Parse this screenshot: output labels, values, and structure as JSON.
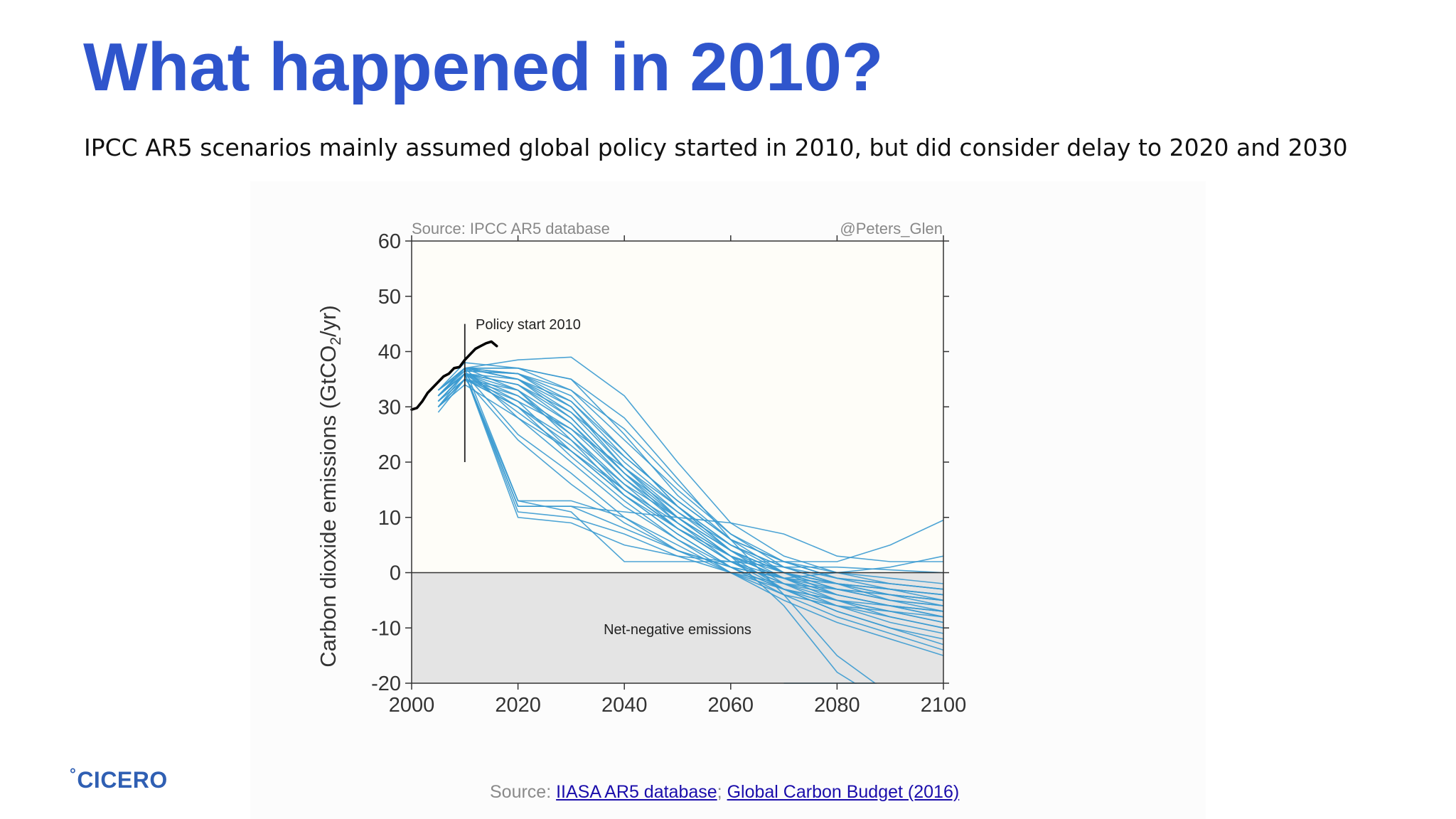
{
  "slide": {
    "title": "What happened in 2010?",
    "subtitle": "IPCC AR5 scenarios mainly assumed global policy started in 2010, but did consider delay to 2020 and 2030"
  },
  "footer": {
    "logo_text": "CICERO",
    "logo_mark": "°",
    "source_prefix": "Source: ",
    "link1": "IIASA AR5 database",
    "separator": ";",
    "link2": "Global Carbon Budget (2016)"
  },
  "colors": {
    "title": "#2F55CC",
    "scenario_lines": "#3A9AD0",
    "historical_line": "#000000",
    "negative_region": "#E4E4E4",
    "plot_background": "#FEFDF8"
  },
  "chart_data": {
    "type": "line",
    "source_note": "Source: IPCC AR5 database",
    "credit": "@Peters_Glen",
    "ylabel_parts": [
      "Carbon dioxide emissions (GtCO",
      "2",
      "/yr)"
    ],
    "xlabel": "",
    "xlim": [
      2000,
      2100
    ],
    "ylim": [
      -20,
      60
    ],
    "xticks": [
      2000,
      2020,
      2040,
      2060,
      2080,
      2100
    ],
    "yticks": [
      -20,
      -10,
      0,
      10,
      20,
      30,
      40,
      50,
      60
    ],
    "grid": false,
    "legend": "none",
    "annotations": {
      "policy_start": {
        "text": "Policy start 2010",
        "x": 2010,
        "y_from": 20,
        "y_to": 45
      },
      "negative_region": {
        "text": "Net-negative emissions",
        "y_from": -20,
        "y_to": 0
      }
    },
    "historical": {
      "x": [
        2000,
        2001,
        2002,
        2003,
        2004,
        2005,
        2006,
        2007,
        2008,
        2009,
        2010,
        2011,
        2012,
        2013,
        2014,
        2015,
        2016
      ],
      "y": [
        29.5,
        29.8,
        31,
        32.5,
        33.5,
        34.5,
        35.5,
        36,
        37,
        37.2,
        38.5,
        39.5,
        40.5,
        41,
        41.5,
        41.8,
        41
      ]
    },
    "scenarios": {
      "x": [
        2005,
        2010,
        2020,
        2030,
        2040,
        2050,
        2060,
        2070,
        2080,
        2090,
        2100
      ],
      "series": [
        {
          "values": [
            33,
            37,
            38.5,
            39,
            32,
            20,
            9,
            3,
            0,
            -2,
            -3
          ]
        },
        {
          "values": [
            32,
            37,
            37,
            35,
            28,
            17,
            6,
            0,
            -4,
            -6,
            -8
          ]
        },
        {
          "values": [
            33,
            36.5,
            36,
            32,
            22,
            12,
            5,
            0,
            -3,
            -5,
            -6
          ]
        },
        {
          "values": [
            32,
            36,
            34,
            28,
            18,
            10,
            3,
            -3,
            -7,
            -10,
            -12
          ]
        },
        {
          "values": [
            31,
            36,
            33,
            25,
            16,
            8,
            2,
            -2,
            -5,
            -7,
            -9
          ]
        },
        {
          "values": [
            30,
            35,
            31,
            22,
            14,
            7,
            1,
            -4,
            -8,
            -11,
            -14
          ]
        },
        {
          "values": [
            29,
            35,
            30,
            21,
            13,
            6,
            0,
            -5,
            -9,
            -12,
            -15
          ]
        },
        {
          "values": [
            32,
            37,
            35,
            30,
            20,
            12,
            4,
            0,
            -2,
            -3,
            -4
          ]
        },
        {
          "values": [
            31,
            36,
            32,
            25,
            15,
            8,
            2,
            -1,
            -4,
            -6,
            -7
          ]
        },
        {
          "values": [
            30,
            36,
            30,
            24,
            16,
            10,
            4,
            0,
            -3,
            -5,
            -6
          ]
        },
        {
          "values": [
            32,
            36.5,
            36,
            30,
            19,
            11,
            4,
            -2,
            -6,
            -8,
            -10
          ]
        },
        {
          "values": [
            30,
            35,
            33,
            27,
            17,
            9,
            2,
            -3,
            -6,
            -9,
            -11
          ]
        },
        {
          "values": [
            31,
            36,
            29,
            22,
            14,
            8,
            2,
            -2,
            -4,
            -6,
            -8
          ]
        },
        {
          "values": [
            32,
            37,
            28,
            20,
            12,
            6,
            1,
            -3,
            -5,
            -7,
            -9
          ]
        },
        {
          "values": [
            31,
            36,
            25,
            18,
            10,
            5,
            0,
            -4,
            -6,
            -7,
            -8
          ]
        },
        {
          "values": [
            30,
            35,
            24,
            16,
            9,
            4,
            0,
            -3,
            -5,
            -6,
            -7
          ]
        },
        {
          "values": [
            32,
            36,
            12,
            12,
            8,
            4,
            1,
            -1,
            -2,
            -3,
            -4
          ]
        },
        {
          "values": [
            31,
            36,
            11,
            10,
            7,
            3,
            0,
            -2,
            -3,
            -4,
            -5
          ]
        },
        {
          "values": [
            32,
            37,
            13,
            11,
            2,
            2,
            2,
            1,
            1,
            0.5,
            0
          ]
        },
        {
          "values": [
            32,
            36,
            12,
            12,
            11,
            10,
            9,
            7,
            3,
            2,
            2
          ]
        },
        {
          "values": [
            31,
            36,
            10,
            9,
            5,
            3,
            2,
            2,
            2,
            5,
            9.5
          ]
        },
        {
          "values": [
            32,
            36,
            13,
            13,
            10,
            4,
            1,
            -1,
            0,
            1,
            3
          ]
        },
        {
          "values": [
            33,
            37,
            36,
            31,
            21,
            13,
            6,
            -4,
            -15,
            -22,
            -25
          ]
        },
        {
          "values": [
            32,
            37,
            35,
            29,
            19,
            10,
            3,
            -6,
            -18,
            -24,
            -26
          ]
        },
        {
          "values": [
            33,
            37,
            36,
            33,
            24,
            15,
            7,
            2,
            -1,
            -3,
            -5
          ]
        },
        {
          "values": [
            31,
            36,
            34,
            27,
            18,
            9,
            3,
            -1,
            -3,
            -4,
            -5
          ]
        },
        {
          "values": [
            30,
            35,
            32,
            26,
            17,
            10,
            4,
            0,
            -2,
            -4,
            -6
          ]
        },
        {
          "values": [
            31,
            36,
            35,
            31,
            22,
            12,
            4,
            -1,
            -5,
            -8,
            -10
          ]
        },
        {
          "values": [
            32,
            37,
            33,
            24,
            14,
            7,
            1,
            -3,
            -7,
            -10,
            -13
          ]
        },
        {
          "values": [
            33,
            38,
            37,
            33,
            26,
            16,
            7,
            1,
            -2,
            -4,
            -5
          ]
        },
        {
          "values": [
            31,
            35,
            30,
            23,
            15,
            8,
            3,
            0,
            -2,
            -3,
            -4
          ]
        },
        {
          "values": [
            32,
            36,
            31,
            26,
            19,
            12,
            5,
            1,
            -1,
            -2,
            -3
          ]
        },
        {
          "values": [
            30,
            34,
            28,
            22,
            15,
            9,
            3,
            -1,
            -4,
            -6,
            -7
          ]
        },
        {
          "values": [
            31,
            36,
            34,
            29,
            21,
            13,
            6,
            2,
            0,
            -1,
            -2
          ]
        },
        {
          "values": [
            32,
            37,
            35,
            28,
            18,
            11,
            5,
            1,
            -2,
            -5,
            -7
          ]
        },
        {
          "values": [
            33,
            37,
            37,
            35,
            25,
            14,
            6,
            2,
            -1,
            -2,
            -3
          ]
        }
      ]
    }
  }
}
